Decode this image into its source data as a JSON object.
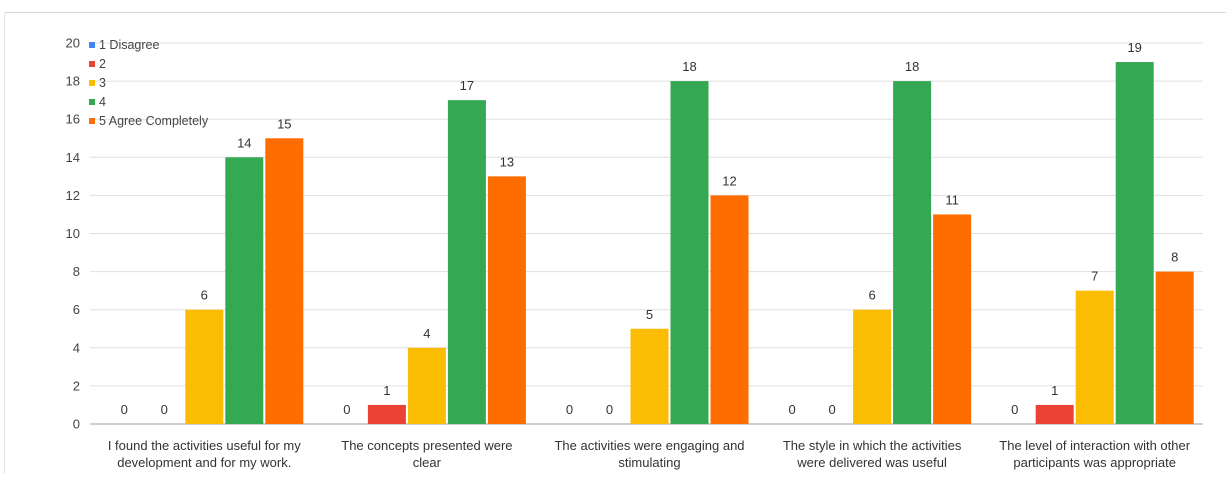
{
  "chart_data": {
    "type": "bar",
    "title": "",
    "xlabel": "",
    "ylabel": "",
    "ylim": [
      0,
      20
    ],
    "yticks": [
      0,
      2,
      4,
      6,
      8,
      10,
      12,
      14,
      16,
      18,
      20
    ],
    "grid": true,
    "legend_position": "top-left",
    "categories": [
      [
        "I found the activities useful for my",
        "development and for my work."
      ],
      [
        "The concepts presented were",
        "clear"
      ],
      [
        "The activities were engaging and",
        "stimulating"
      ],
      [
        "The style in which the activities",
        "were delivered was useful"
      ],
      [
        "The level of interaction with other",
        "participants was appropriate"
      ]
    ],
    "series": [
      {
        "name": "1 Disagree",
        "color": "#4285f4",
        "values": [
          0,
          0,
          0,
          0,
          0
        ]
      },
      {
        "name": "2",
        "color": "#ea4335",
        "values": [
          0,
          1,
          0,
          0,
          1
        ]
      },
      {
        "name": "3",
        "color": "#fbbc04",
        "values": [
          6,
          4,
          5,
          6,
          7
        ]
      },
      {
        "name": "4",
        "color": "#34a853",
        "values": [
          14,
          17,
          18,
          18,
          19
        ]
      },
      {
        "name": "5 Agree Completely",
        "color": "#ff6d01",
        "values": [
          15,
          13,
          12,
          11,
          8
        ]
      }
    ]
  }
}
